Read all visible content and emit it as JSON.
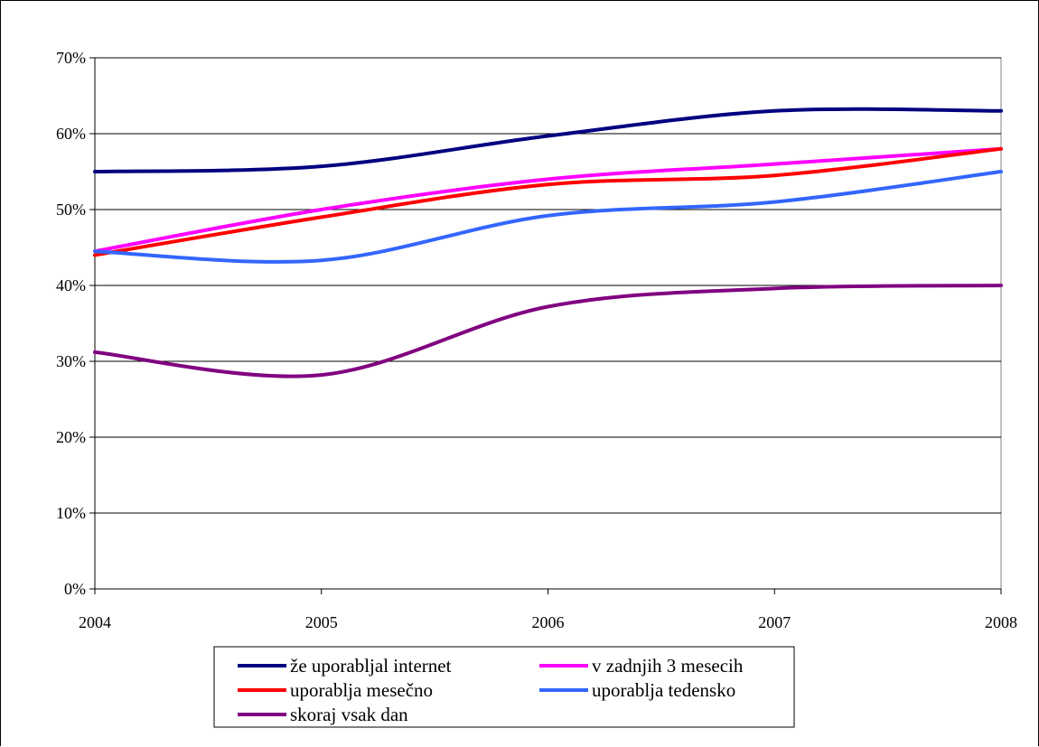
{
  "chart_data": {
    "type": "line",
    "title": "",
    "xlabel": "",
    "ylabel": "",
    "x": [
      "2004",
      "2005",
      "2006",
      "2007",
      "2008"
    ],
    "ylim": [
      0,
      70
    ],
    "yticks": [
      0,
      10,
      20,
      30,
      40,
      50,
      60,
      70
    ],
    "ytick_labels": [
      "0%",
      "10%",
      "20%",
      "30%",
      "40%",
      "50%",
      "60%",
      "70%"
    ],
    "grid": "horizontal",
    "legend_position": "bottom",
    "series": [
      {
        "name": "že uporabljal internet",
        "color": "#000080",
        "values": [
          55,
          55.7,
          59.7,
          63,
          63
        ]
      },
      {
        "name": "v zadnjih 3 mesecih",
        "color": "#ff00ff",
        "values": [
          44.5,
          50,
          54,
          56,
          58
        ]
      },
      {
        "name": "uporablja mesečno",
        "color": "#ff0000",
        "values": [
          44,
          49,
          53.3,
          54.5,
          58
        ]
      },
      {
        "name": "uporablja tedensko",
        "color": "#3366ff",
        "values": [
          44.5,
          43.3,
          49.2,
          51,
          55
        ]
      },
      {
        "name": "skoraj vsak dan",
        "color": "#800080",
        "values": [
          31.2,
          28.2,
          37.2,
          39.6,
          40
        ]
      }
    ]
  }
}
